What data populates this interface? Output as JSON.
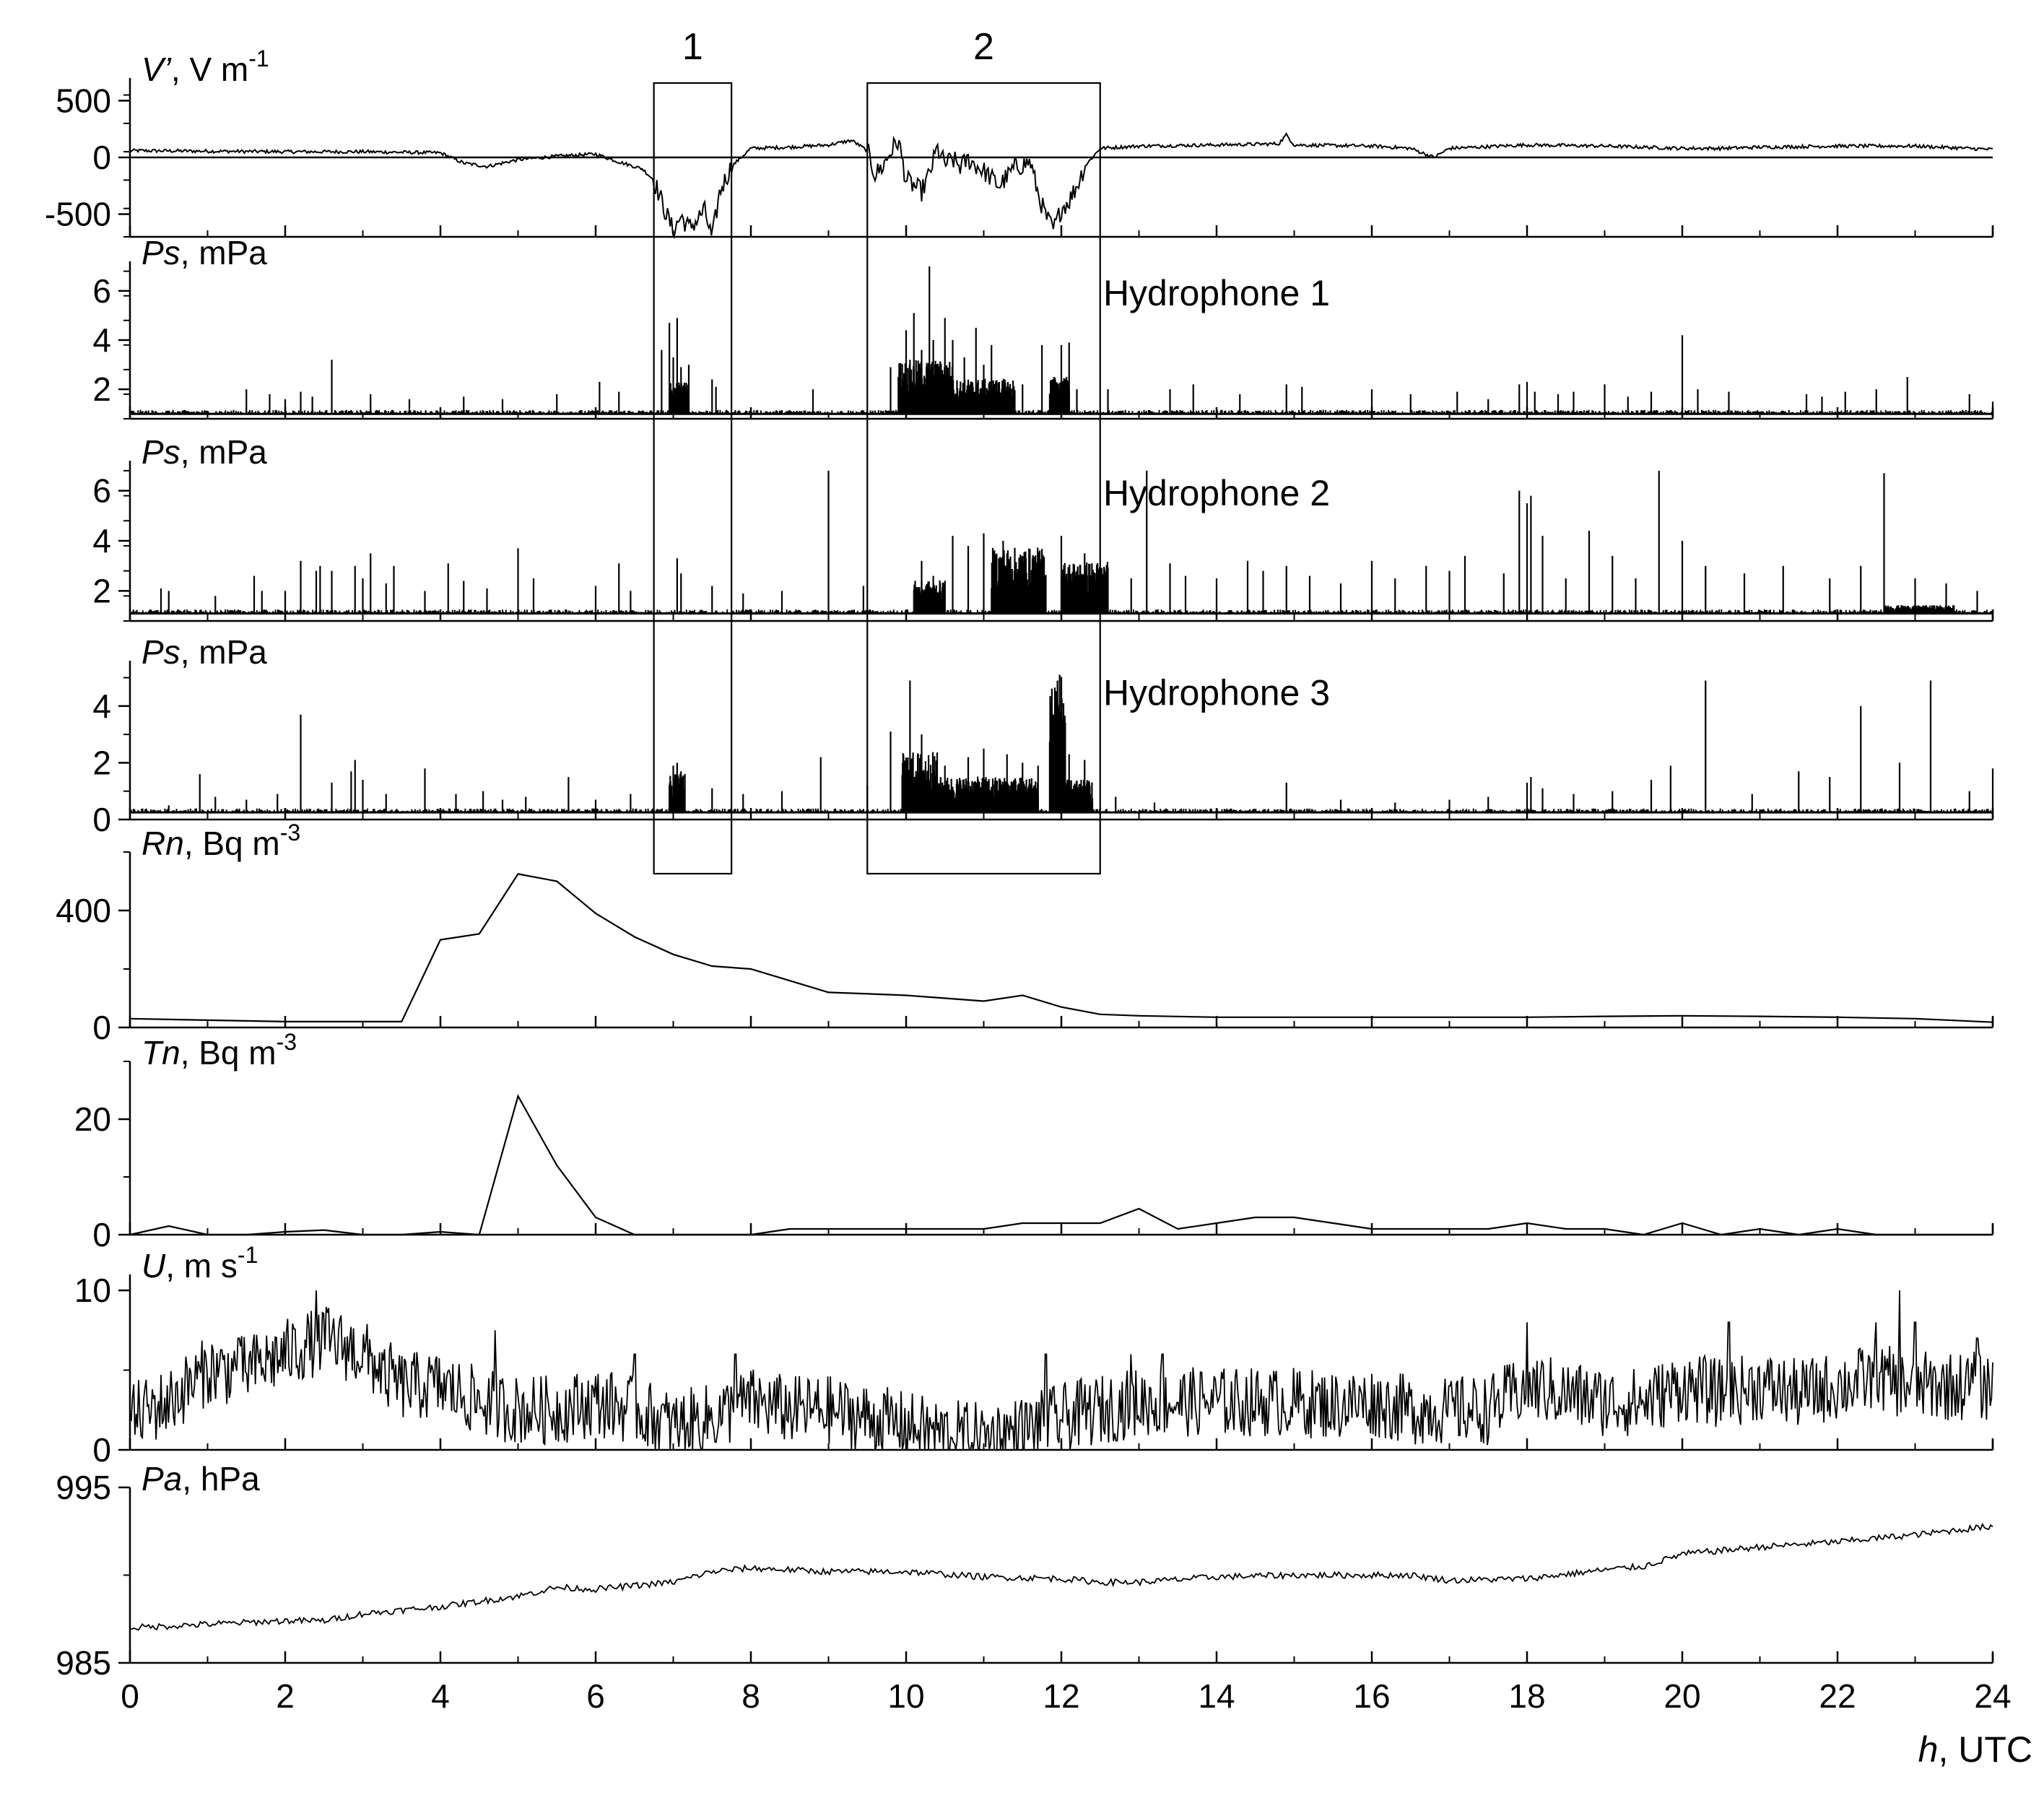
{
  "chart_data": {
    "type": "line",
    "x_axis": {
      "label": "h, UTC",
      "label_italic": "h",
      "label_rest": ", UTC",
      "range": [
        0,
        24
      ],
      "ticks": [
        "0",
        "2",
        "4",
        "6",
        "8",
        "10",
        "12",
        "14",
        "16",
        "18",
        "20",
        "22",
        "24"
      ]
    },
    "boxes": [
      {
        "label": "1",
        "x_range": [
          6.75,
          7.75
        ]
      },
      {
        "label": "2",
        "x_range": [
          9.5,
          12.5
        ]
      }
    ],
    "panels": [
      {
        "id": "vprime",
        "label_italic": "V’",
        "label_rest": ", V m",
        "label_sup": "-1",
        "ylim": [
          -700,
          700
        ],
        "yticks": [
          "500",
          "0",
          "-500"
        ],
        "ytick_values": [
          500,
          0,
          -500
        ],
        "kind": "line",
        "x": [
          0,
          1,
          2,
          3,
          3.5,
          4,
          4.3,
          4.6,
          5,
          5.5,
          6,
          6.3,
          6.6,
          6.75,
          6.9,
          7.0,
          7.1,
          7.2,
          7.3,
          7.4,
          7.5,
          7.6,
          7.75,
          8,
          8.5,
          9,
          9.3,
          9.5,
          9.6,
          9.7,
          9.8,
          9.9,
          10,
          10.1,
          10.2,
          10.3,
          10.4,
          10.5,
          10.6,
          10.7,
          10.8,
          11,
          11.2,
          11.4,
          11.6,
          11.7,
          11.8,
          11.9,
          12,
          12.1,
          12.2,
          12.3,
          12.5,
          13,
          14,
          14.8,
          14.9,
          15,
          16,
          16.5,
          16.8,
          17,
          18,
          19,
          20,
          20.5,
          21,
          22,
          23,
          24
        ],
        "y": [
          60,
          55,
          50,
          50,
          45,
          40,
          -50,
          -80,
          -20,
          10,
          30,
          -40,
          -100,
          -200,
          -480,
          -650,
          -520,
          -620,
          -560,
          -460,
          -720,
          -300,
          -80,
          80,
          90,
          110,
          150,
          60,
          -150,
          -80,
          50,
          150,
          -200,
          -250,
          -300,
          -150,
          80,
          -60,
          -20,
          -80,
          -20,
          -120,
          -250,
          -90,
          -40,
          -320,
          -520,
          -640,
          -450,
          -380,
          -250,
          -80,
          80,
          100,
          110,
          120,
          200,
          110,
          100,
          80,
          0,
          80,
          110,
          100,
          80,
          80,
          90,
          100,
          100,
          70
        ]
      },
      {
        "id": "hydro1",
        "label_italic": "Ps",
        "label_rest": ", mPa",
        "side_label": "Hydrophone 1",
        "ylim": [
          0.8,
          7.2
        ],
        "yticks": [
          "6",
          "4",
          "2"
        ],
        "ytick_values": [
          6,
          4,
          2
        ],
        "kind": "spike",
        "baseline": 1.0,
        "spikes_x": [
          1.5,
          1.8,
          2.0,
          2.2,
          2.35,
          2.6,
          3.1,
          3.6,
          4.3,
          4.8,
          5.5,
          6.05,
          6.3,
          6.85,
          6.95,
          7.0,
          7.05,
          7.1,
          7.2,
          7.5,
          7.55,
          8.8,
          9.8,
          10.0,
          10.1,
          10.2,
          10.3,
          10.35,
          10.5,
          10.6,
          10.75,
          10.9,
          11.0,
          11.1,
          11.2,
          11.35,
          11.5,
          11.75,
          11.9,
          12.0,
          12.05,
          12.1,
          12.2,
          12.6,
          13.4,
          13.7,
          14.3,
          14.9,
          15.1,
          16.0,
          16.5,
          17.1,
          17.5,
          17.9,
          18.0,
          18.1,
          18.4,
          18.6,
          19.0,
          19.3,
          19.6,
          20.0,
          20.2,
          20.6,
          21.6,
          21.8,
          22.1,
          22.5,
          22.9,
          23.7,
          24.0
        ],
        "spikes_y": [
          2.0,
          1.8,
          1.6,
          1.9,
          1.7,
          3.2,
          1.8,
          1.6,
          1.7,
          1.6,
          1.8,
          2.3,
          1.9,
          3.6,
          4.7,
          3.3,
          4.9,
          2.9,
          3.0,
          2.4,
          2.1,
          2.0,
          2.9,
          4.4,
          5.1,
          3.6,
          7.0,
          4.0,
          4.9,
          4.0,
          3.3,
          4.5,
          3.0,
          3.8,
          2.3,
          2.0,
          2.2,
          3.8,
          2.3,
          3.8,
          2.4,
          3.9,
          2.0,
          2.0,
          2.0,
          2.2,
          1.8,
          2.2,
          2.1,
          2.0,
          1.8,
          1.9,
          1.6,
          2.2,
          2.3,
          1.9,
          1.8,
          1.9,
          2.2,
          1.7,
          1.9,
          4.2,
          2.0,
          1.9,
          1.8,
          1.7,
          1.9,
          2.0,
          2.5,
          1.8,
          1.5
        ],
        "dense_ranges": [
          [
            6.95,
            7.2,
            2.2
          ],
          [
            9.9,
            10.6,
            3.0
          ],
          [
            10.6,
            11.4,
            2.3
          ],
          [
            11.85,
            12.1,
            2.4
          ]
        ]
      },
      {
        "id": "hydro2",
        "label_italic": "Ps",
        "label_rest": ", mPa",
        "side_label": "Hydrophone 2",
        "ylim": [
          0.8,
          7.2
        ],
        "yticks": [
          "6",
          "4",
          "2"
        ],
        "ytick_values": [
          6,
          4,
          2
        ],
        "kind": "spike",
        "baseline": 1.1,
        "spikes_x": [
          0.4,
          0.5,
          1.1,
          1.6,
          1.7,
          2.0,
          2.2,
          2.4,
          2.45,
          2.6,
          2.9,
          3.0,
          3.1,
          3.3,
          3.4,
          3.8,
          4.1,
          4.3,
          4.6,
          5.0,
          5.2,
          6.0,
          6.3,
          6.45,
          7.05,
          7.1,
          7.5,
          7.9,
          8.4,
          9.0,
          9.45,
          10.2,
          10.35,
          10.6,
          10.8,
          11.0,
          11.25,
          11.5,
          12.0,
          12.3,
          12.9,
          13.1,
          13.4,
          13.6,
          14.0,
          14.4,
          14.6,
          14.9,
          15.2,
          15.6,
          16.0,
          16.3,
          16.7,
          17.0,
          17.2,
          17.7,
          17.9,
          18.0,
          18.05,
          18.2,
          18.5,
          18.8,
          19.1,
          19.4,
          19.7,
          20.0,
          20.3,
          20.8,
          21.3,
          21.9,
          22.3,
          22.6,
          23.0,
          23.4,
          23.8
        ],
        "spikes_y": [
          2.1,
          2.0,
          1.8,
          2.6,
          2.0,
          2.0,
          3.2,
          2.8,
          3.0,
          2.8,
          3.0,
          2.5,
          3.5,
          2.3,
          3.0,
          2.0,
          3.1,
          2.4,
          2.1,
          3.7,
          2.5,
          2.2,
          3.1,
          2.0,
          3.3,
          2.7,
          2.2,
          1.9,
          2.0,
          6.8,
          2.2,
          3.2,
          2.6,
          4.2,
          3.8,
          4.3,
          4.0,
          3.4,
          4.2,
          3.5,
          2.5,
          6.8,
          3.1,
          2.6,
          2.5,
          3.2,
          2.8,
          3.0,
          2.6,
          2.3,
          3.2,
          2.5,
          3.0,
          2.8,
          3.4,
          2.7,
          6.0,
          5.5,
          5.8,
          4.2,
          2.5,
          4.4,
          3.4,
          2.5,
          6.8,
          4.0,
          3.0,
          2.7,
          3.0,
          2.5,
          3.0,
          6.7,
          2.5,
          2.3,
          2.0
        ],
        "dense_ranges": [
          [
            10.1,
            10.5,
            2.3
          ],
          [
            11.1,
            11.8,
            3.5
          ],
          [
            12.0,
            12.6,
            3.0
          ],
          [
            22.6,
            23.5,
            1.4
          ]
        ]
      },
      {
        "id": "hydro3",
        "label_italic": "Ps",
        "label_rest": ", mPa",
        "side_label": "Hydrophone 3",
        "ylim": [
          0,
          5.6
        ],
        "yticks": [
          "4",
          "2",
          "0"
        ],
        "ytick_values": [
          4,
          2,
          0
        ],
        "kind": "spike",
        "baseline": 0.25,
        "spikes_x": [
          0.5,
          0.9,
          1.1,
          1.5,
          1.9,
          2.2,
          2.6,
          2.85,
          2.9,
          3.0,
          3.3,
          3.8,
          4.2,
          4.55,
          4.8,
          5.1,
          5.65,
          6.0,
          6.45,
          7.0,
          7.05,
          7.1,
          7.5,
          7.9,
          8.4,
          8.9,
          9.5,
          9.8,
          10.05,
          10.2,
          10.5,
          10.8,
          11.0,
          11.3,
          11.5,
          11.7,
          11.9,
          11.95,
          12.0,
          12.1,
          12.3,
          12.7,
          13.2,
          14.9,
          15.6,
          16.3,
          17.0,
          17.5,
          18.0,
          18.05,
          18.2,
          18.6,
          19.1,
          19.6,
          19.85,
          20.3,
          20.9,
          21.5,
          21.9,
          22.3,
          22.8,
          23.2,
          23.7,
          24.0
        ],
        "spikes_y": [
          0.5,
          1.6,
          0.8,
          0.7,
          0.9,
          3.7,
          1.3,
          1.7,
          2.1,
          1.4,
          0.9,
          1.8,
          0.9,
          1.0,
          0.7,
          0.8,
          1.5,
          0.7,
          0.9,
          1.9,
          2.0,
          1.7,
          1.1,
          0.9,
          1.0,
          2.2,
          1.2,
          3.1,
          4.9,
          3.0,
          1.9,
          2.2,
          2.5,
          2.3,
          2.0,
          1.9,
          2.0,
          4.9,
          4.5,
          2.3,
          2.1,
          0.8,
          0.6,
          1.3,
          0.7,
          0.6,
          0.7,
          0.8,
          1.3,
          1.5,
          1.1,
          0.9,
          1.0,
          1.4,
          1.9,
          4.9,
          0.9,
          1.7,
          1.5,
          4.0,
          2.0,
          4.9,
          1.0,
          1.8
        ],
        "dense_ranges": [
          [
            6.95,
            7.15,
            1.5
          ],
          [
            9.95,
            10.4,
            2.2
          ],
          [
            10.4,
            11.7,
            1.4
          ],
          [
            11.85,
            12.05,
            4.8
          ],
          [
            12.05,
            12.4,
            1.3
          ]
        ]
      },
      {
        "id": "rn",
        "label_italic": "Rn",
        "label_rest": ", Bq m",
        "label_sup": "-3",
        "ylim": [
          0,
          600
        ],
        "yticks": [
          "400",
          "0"
        ],
        "ytick_values": [
          400,
          0
        ],
        "kind": "line",
        "x": [
          0,
          1,
          2,
          3,
          3.5,
          4,
          4.5,
          5,
          5.5,
          6,
          6.5,
          7,
          7.5,
          8,
          8.5,
          9,
          9.5,
          10,
          10.5,
          11,
          11.5,
          12,
          12.5,
          13,
          14,
          15,
          16,
          17,
          18,
          19,
          20,
          21,
          22,
          23,
          24
        ],
        "y": [
          30,
          25,
          20,
          20,
          20,
          300,
          320,
          525,
          500,
          390,
          310,
          250,
          210,
          200,
          160,
          120,
          115,
          110,
          100,
          90,
          110,
          70,
          45,
          40,
          35,
          35,
          35,
          35,
          35,
          38,
          40,
          38,
          35,
          30,
          18
        ]
      },
      {
        "id": "tn",
        "label_italic": "Tn",
        "label_rest": ", Bq m",
        "label_sup": "-3",
        "ylim": [
          0,
          30
        ],
        "yticks": [
          "20",
          "0"
        ],
        "ytick_values": [
          20,
          0
        ],
        "kind": "line",
        "x": [
          0,
          0.5,
          1,
          1.5,
          2,
          2.5,
          3,
          3.5,
          4,
          4.5,
          5,
          5.5,
          6,
          6.5,
          7,
          7.5,
          8,
          8.5,
          9,
          9.5,
          10,
          10.5,
          11,
          11.5,
          12,
          12.5,
          13,
          13.5,
          14,
          14.5,
          15,
          15.5,
          16,
          16.5,
          17,
          17.5,
          18,
          18.5,
          19,
          19.5,
          20,
          20.5,
          21,
          21.5,
          22,
          22.5,
          23,
          24
        ],
        "y": [
          0,
          1.5,
          0,
          0,
          0.5,
          0.8,
          0,
          0,
          0.5,
          0,
          24,
          12,
          3,
          0,
          0,
          0,
          0,
          1,
          1,
          1,
          1,
          1,
          1,
          2,
          2,
          2,
          4.5,
          1,
          2,
          3,
          3,
          2,
          1,
          1,
          1,
          1,
          2,
          1,
          1,
          0,
          2,
          0,
          1,
          0,
          1,
          0,
          0,
          0
        ]
      },
      {
        "id": "u",
        "label_italic": "U",
        "label_rest": ", m s",
        "label_sup": "-1",
        "ylim": [
          0,
          11
        ],
        "yticks": [
          "10",
          "0"
        ],
        "ytick_values": [
          10,
          0
        ],
        "kind": "noisy",
        "x": [
          0,
          0.5,
          1,
          1.5,
          2,
          2.5,
          3,
          3.5,
          4,
          4.5,
          5,
          5.5,
          6,
          6.5,
          7,
          7.5,
          8,
          8.5,
          9,
          9.5,
          10,
          10.5,
          11,
          11.5,
          12,
          12.5,
          13,
          13.5,
          14,
          14.5,
          15,
          15.5,
          16,
          16.5,
          17,
          17.5,
          18,
          18.5,
          19,
          19.5,
          20,
          20.5,
          21,
          21.5,
          22,
          22.5,
          23,
          23.5,
          24
        ],
        "y": [
          2,
          3,
          5,
          5,
          6,
          7,
          6,
          4,
          4,
          3,
          2.5,
          2.5,
          3,
          2.5,
          1.5,
          2,
          3,
          2.5,
          2.5,
          2,
          1.5,
          1,
          0.8,
          1.2,
          2,
          2.5,
          3,
          3,
          3,
          3,
          3,
          2.8,
          3,
          2.5,
          2.5,
          2.5,
          4,
          3.5,
          3,
          3,
          4,
          3.5,
          4,
          3.5,
          4,
          4.5,
          4,
          4,
          4
        ],
        "amplitude": 2.2,
        "spikes": [
          [
            2.4,
            10
          ],
          [
            1.4,
            7
          ],
          [
            3.3,
            3.5
          ],
          [
            4.7,
            7.5
          ],
          [
            6.5,
            6
          ],
          [
            7.8,
            6
          ],
          [
            11.8,
            6
          ],
          [
            12.9,
            6
          ],
          [
            17.0,
            4
          ],
          [
            18.0,
            8
          ],
          [
            20.6,
            8
          ],
          [
            22.5,
            8
          ],
          [
            22.8,
            10
          ],
          [
            23.0,
            8
          ],
          [
            23.8,
            7
          ],
          [
            13.3,
            6
          ]
        ]
      },
      {
        "id": "pa",
        "label_italic": "Pa",
        "label_rest": ", hPa",
        "ylim": [
          985,
          995
        ],
        "yticks": [
          "995",
          "985"
        ],
        "ytick_values": [
          995,
          985
        ],
        "kind": "noisy",
        "x": [
          0,
          1,
          2,
          2.5,
          3,
          4,
          5,
          5.5,
          6,
          7,
          7.5,
          8,
          9,
          10,
          11,
          12,
          12.5,
          13,
          14,
          15,
          16,
          16.5,
          17,
          18,
          19,
          19.5,
          20,
          21,
          22,
          23,
          24
        ],
        "y": [
          987,
          987.2,
          987.4,
          987.4,
          987.8,
          988.2,
          988.8,
          989.3,
          989.2,
          989.6,
          990.2,
          990.4,
          990.2,
          990.2,
          989.9,
          989.8,
          989.6,
          989.6,
          989.9,
          990.0,
          990.0,
          990.0,
          989.7,
          989.8,
          990.3,
          990.5,
          991.2,
          991.6,
          991.9,
          992.3,
          992.8
        ],
        "amplitude": 0.18,
        "spikes": []
      }
    ]
  }
}
